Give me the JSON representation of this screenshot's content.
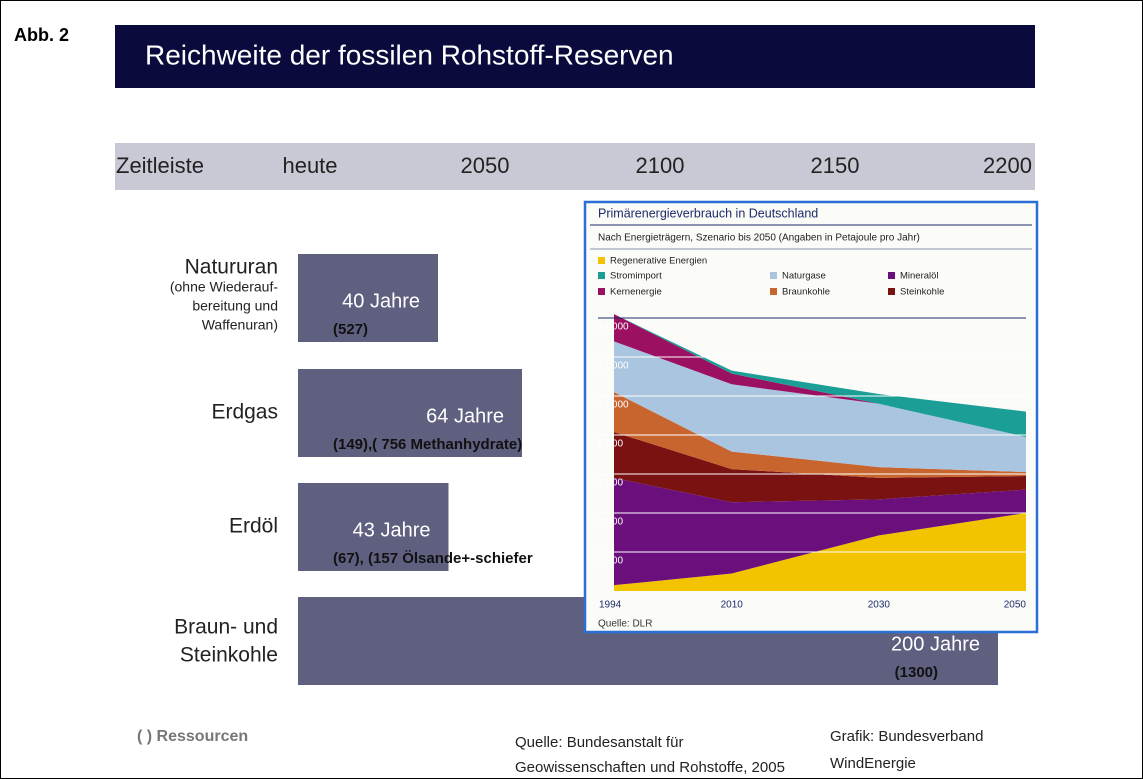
{
  "figure_label": "Abb. 2",
  "title": "Reichweite der fossilen Rohstoff-Reserven",
  "axis_label": "Zeitleiste",
  "legend_note": "( ) Ressourcen",
  "source": [
    "Quelle: Bundesanstalt für",
    "Geowissenschaften und Rohstoffe, 2005"
  ],
  "credit": [
    "Grafik: Bundesverband",
    "WindEnergie"
  ],
  "chart_data": [
    {
      "type": "hbar",
      "categories": [
        [
          "Natururan"
        ],
        [
          "Erdgas"
        ],
        [
          "Erdöl"
        ],
        [
          "Braun- und",
          "Steinkohle"
        ]
      ],
      "category_notes": [
        [
          "(ohne Wiederauf-",
          "bereitung und",
          "Waffenuran)"
        ],
        null,
        null,
        null
      ],
      "values": [
        40,
        64,
        43,
        200
      ],
      "value_labels": [
        "40 Jahre",
        "64 Jahre",
        "43 Jahre",
        "200 Jahre"
      ],
      "resource_labels": [
        "(527)",
        "(149),( 756 Methanhydrate)",
        "(67), (157 Ölsande+-schiefer",
        "(1300)"
      ],
      "color": "#5f6080",
      "xlim": [
        -52,
        210
      ],
      "xticks": [
        {
          "value": 0,
          "label": "heute"
        },
        {
          "value": 50,
          "label": "2050"
        },
        {
          "value": 100,
          "label": "2100"
        },
        {
          "value": 150,
          "label": "2150"
        },
        {
          "value": 200,
          "label": "2200"
        }
      ]
    },
    {
      "type": "stacked_area",
      "title": "Primärenergieverbrauch in Deutschland",
      "subtitle": "Nach Energieträgern, Szenario bis 2050 (Angaben in Petajoule pro Jahr)",
      "source": "Quelle: DLR",
      "x": [
        1994,
        2010,
        2030,
        2050
      ],
      "xticks": [
        1994,
        2010,
        2030,
        2050
      ],
      "xlim": [
        1994,
        2050
      ],
      "ylim": [
        0,
        14500
      ],
      "yticks": [
        {
          "value": 2000,
          "label": "2.000"
        },
        {
          "value": 4000,
          "label": "4.000"
        },
        {
          "value": 6000,
          "label": "6.000"
        },
        {
          "value": 8000,
          "label": "8.000"
        },
        {
          "value": 10000,
          "label": "10.000"
        },
        {
          "value": 12000,
          "label": "12.000"
        },
        {
          "value": 14000,
          "label": "14.000"
        }
      ],
      "grid": true,
      "series": [
        {
          "name": "Regenerative Energien",
          "color": "#f2c400",
          "values": [
            300,
            900,
            2850,
            4000
          ]
        },
        {
          "name": "Mineralöl",
          "color": "#6a0f7c",
          "values": [
            5500,
            3650,
            1850,
            1200
          ]
        },
        {
          "name": "Steinkohle",
          "color": "#7a1212",
          "values": [
            2350,
            1700,
            1100,
            700
          ]
        },
        {
          "name": "Braunkohle",
          "color": "#c8642e",
          "values": [
            2050,
            900,
            550,
            200
          ]
        },
        {
          "name": "Naturgase",
          "color": "#a9c5df",
          "values": [
            2600,
            3450,
            3250,
            1800
          ]
        },
        {
          "name": "Kernenergie",
          "color": "#9b1060",
          "values": [
            1400,
            550,
            0,
            0
          ]
        },
        {
          "name": "Stromimport",
          "color": "#1a9e96",
          "values": [
            0,
            150,
            500,
            1300
          ]
        }
      ]
    }
  ]
}
